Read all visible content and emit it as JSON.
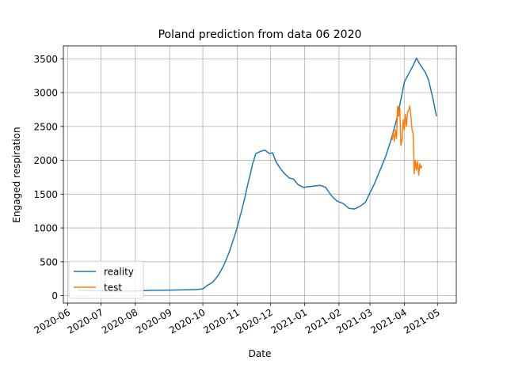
{
  "chart_data": {
    "type": "line",
    "title": "Poland prediction from data 06 2020",
    "xlabel": "Date",
    "ylabel": "Engaged respiration",
    "x_ticks": [
      "2020-06",
      "2020-07",
      "2020-08",
      "2020-09",
      "2020-10",
      "2020-11",
      "2020-12",
      "2021-01",
      "2021-02",
      "2021-03",
      "2021-04",
      "2021-05"
    ],
    "y_ticks": [
      "0",
      "500",
      "1000",
      "1500",
      "2000",
      "2500",
      "3000",
      "3500"
    ],
    "xlim": [
      "2020-05-28",
      "2021-05-18"
    ],
    "ylim": [
      -110,
      3690
    ],
    "grid": true,
    "legend": "lower-left",
    "series": [
      {
        "name": "reality",
        "color": "#1f77b4",
        "points": [
          [
            "2020-06-10",
            80
          ],
          [
            "2020-06-20",
            75
          ],
          [
            "2020-07-01",
            70
          ],
          [
            "2020-07-15",
            65
          ],
          [
            "2020-08-01",
            68
          ],
          [
            "2020-08-15",
            78
          ],
          [
            "2020-09-01",
            82
          ],
          [
            "2020-09-15",
            85
          ],
          [
            "2020-09-25",
            90
          ],
          [
            "2020-10-01",
            100
          ],
          [
            "2020-10-05",
            150
          ],
          [
            "2020-10-10",
            200
          ],
          [
            "2020-10-15",
            300
          ],
          [
            "2020-10-20",
            450
          ],
          [
            "2020-10-25",
            650
          ],
          [
            "2020-10-31",
            950
          ],
          [
            "2020-11-05",
            1250
          ],
          [
            "2020-11-08",
            1450
          ],
          [
            "2020-11-10",
            1600
          ],
          [
            "2020-11-13",
            1800
          ],
          [
            "2020-11-15",
            1950
          ],
          [
            "2020-11-18",
            2100
          ],
          [
            "2020-11-22",
            2130
          ],
          [
            "2020-11-26",
            2150
          ],
          [
            "2020-11-30",
            2100
          ],
          [
            "2020-12-03",
            2110
          ],
          [
            "2020-12-06",
            1980
          ],
          [
            "2020-12-10",
            1880
          ],
          [
            "2020-12-14",
            1800
          ],
          [
            "2020-12-18",
            1740
          ],
          [
            "2020-12-22",
            1720
          ],
          [
            "2020-12-26",
            1640
          ],
          [
            "2020-12-31",
            1600
          ],
          [
            "2021-01-05",
            1610
          ],
          [
            "2021-01-10",
            1620
          ],
          [
            "2021-01-15",
            1630
          ],
          [
            "2021-01-20",
            1600
          ],
          [
            "2021-01-25",
            1480
          ],
          [
            "2021-01-30",
            1400
          ],
          [
            "2021-02-05",
            1360
          ],
          [
            "2021-02-10",
            1290
          ],
          [
            "2021-02-15",
            1280
          ],
          [
            "2021-02-20",
            1320
          ],
          [
            "2021-02-25",
            1380
          ],
          [
            "2021-03-01",
            1520
          ],
          [
            "2021-03-05",
            1650
          ],
          [
            "2021-03-10",
            1850
          ],
          [
            "2021-03-15",
            2050
          ],
          [
            "2021-03-20",
            2300
          ],
          [
            "2021-03-25",
            2600
          ],
          [
            "2021-03-29",
            2900
          ],
          [
            "2021-04-01",
            3150
          ],
          [
            "2021-04-05",
            3280
          ],
          [
            "2021-04-09",
            3400
          ],
          [
            "2021-04-12",
            3510
          ],
          [
            "2021-04-15",
            3420
          ],
          [
            "2021-04-20",
            3300
          ],
          [
            "2021-04-23",
            3180
          ],
          [
            "2021-04-27",
            2900
          ],
          [
            "2021-04-30",
            2650
          ]
        ]
      },
      {
        "name": "test",
        "color": "#ff7f0e",
        "points": [
          [
            "2021-03-21",
            2300
          ],
          [
            "2021-03-22",
            2420
          ],
          [
            "2021-03-23",
            2280
          ],
          [
            "2021-03-24",
            2450
          ],
          [
            "2021-03-25",
            2320
          ],
          [
            "2021-03-26",
            2800
          ],
          [
            "2021-03-27",
            2650
          ],
          [
            "2021-03-28",
            2780
          ],
          [
            "2021-03-29",
            2220
          ],
          [
            "2021-03-30",
            2300
          ],
          [
            "2021-03-31",
            2600
          ],
          [
            "2021-04-01",
            2450
          ],
          [
            "2021-04-02",
            2680
          ],
          [
            "2021-04-03",
            2500
          ],
          [
            "2021-04-04",
            2720
          ],
          [
            "2021-04-05",
            2740
          ],
          [
            "2021-04-06",
            2800
          ],
          [
            "2021-04-07",
            2650
          ],
          [
            "2021-04-08",
            2450
          ],
          [
            "2021-04-09",
            2400
          ],
          [
            "2021-04-10",
            1800
          ],
          [
            "2021-04-11",
            2000
          ],
          [
            "2021-04-12",
            1860
          ],
          [
            "2021-04-13",
            1980
          ],
          [
            "2021-04-14",
            1780
          ],
          [
            "2021-04-15",
            1950
          ],
          [
            "2021-04-16",
            1880
          ],
          [
            "2021-04-17",
            1920
          ]
        ]
      }
    ]
  }
}
